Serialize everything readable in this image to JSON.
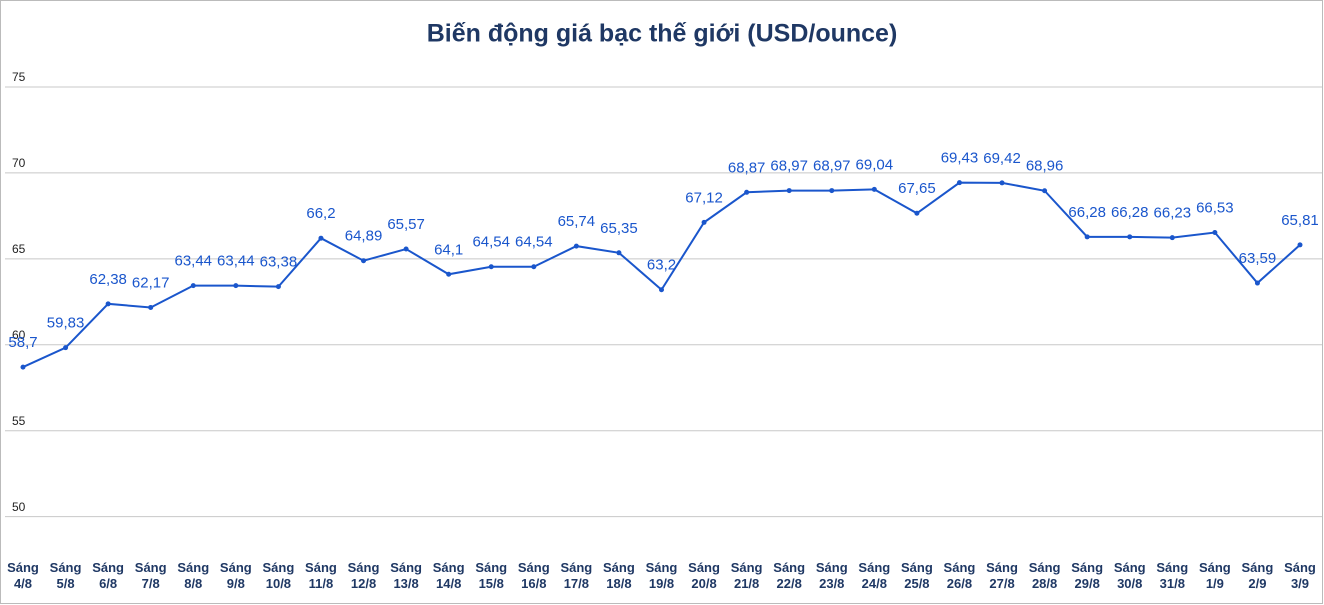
{
  "chart_data": {
    "type": "line",
    "title": "Biến động giá bạc thế giới (USD/ounce)",
    "categories": [
      "Sáng 4/8",
      "Sáng 5/8",
      "Sáng 6/8",
      "Sáng 7/8",
      "Sáng 8/8",
      "Sáng 9/8",
      "Sáng 10/8",
      "Sáng 11/8",
      "Sáng 12/8",
      "Sáng 13/8",
      "Sáng 14/8",
      "Sáng 15/8",
      "Sáng 16/8",
      "Sáng 17/8",
      "Sáng 18/8",
      "Sáng 19/8",
      "Sáng 20/8",
      "Sáng 21/8",
      "Sáng 22/8",
      "Sáng 23/8",
      "Sáng 24/8",
      "Sáng 25/8",
      "Sáng 26/8",
      "Sáng 27/8",
      "Sáng 28/8",
      "Sáng 29/8",
      "Sáng 30/8",
      "Sáng 31/8",
      "Sáng 1/9",
      "Sáng 2/9",
      "Sáng 3/9"
    ],
    "values": [
      58.7,
      59.83,
      62.38,
      62.17,
      63.44,
      63.44,
      63.38,
      66.2,
      64.89,
      65.57,
      64.1,
      64.54,
      64.54,
      65.74,
      65.35,
      63.2,
      67.12,
      68.87,
      68.97,
      68.97,
      69.04,
      67.65,
      69.43,
      69.42,
      68.96,
      66.28,
      66.28,
      66.23,
      66.53,
      63.59,
      65.81
    ],
    "value_labels": [
      "58,7",
      "59,83",
      "62,38",
      "62,17",
      "63,44",
      "63,44",
      "63,38",
      "66,2",
      "64,89",
      "65,57",
      "64,1",
      "64,54",
      "64,54",
      "65,74",
      "65,35",
      "63,2",
      "67,12",
      "68,87",
      "68,97",
      "68,97",
      "69,04",
      "67,65",
      "69,43",
      "69,42",
      "68,96",
      "66,28",
      "66,28",
      "66,23",
      "66,53",
      "63,59",
      "65,81"
    ],
    "color": "#1a56cc",
    "ylim": [
      48,
      80
    ],
    "yticks": [
      50,
      55,
      60,
      65,
      70,
      75
    ],
    "grid": true
  }
}
